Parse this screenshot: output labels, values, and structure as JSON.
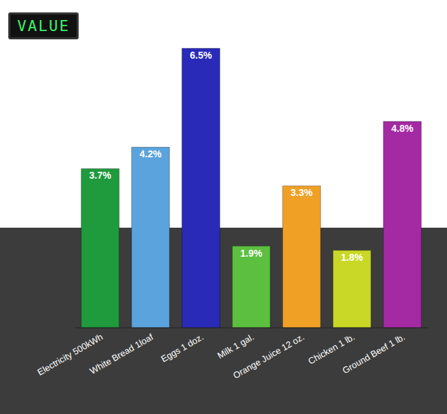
{
  "chart_data": {
    "type": "bar",
    "annotations": [
      "VALUE"
    ],
    "categories": [
      "Electricity 500kWh",
      "White Bread 1loaf",
      "Eggs 1 doz.",
      "Milk 1 gal.",
      "Orange Juice 12 oz.",
      "Chicken 1 lb.",
      "Ground Beef 1 lb."
    ],
    "values": [
      3.7,
      4.2,
      6.5,
      1.9,
      3.3,
      1.8,
      4.8
    ],
    "value_labels": [
      "3.7%",
      "4.2%",
      "6.5%",
      "1.9%",
      "3.3%",
      "1.8%",
      "4.8%"
    ],
    "colors": [
      "#1f9a3c",
      "#5ba3dc",
      "#2a2ab8",
      "#5cbf3f",
      "#f0a024",
      "#c9d826",
      "#a42aa4"
    ],
    "data_labels": true,
    "tick_labels": "x",
    "grid": false
  }
}
